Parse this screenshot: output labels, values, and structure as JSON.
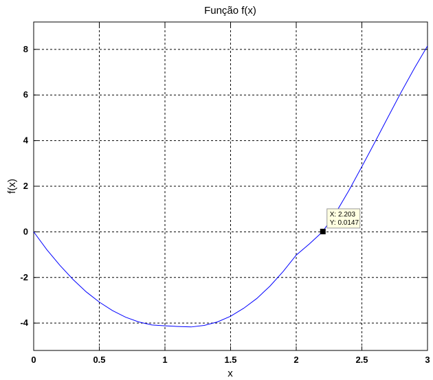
{
  "chart_data": {
    "type": "line",
    "title": "Função f(x)",
    "xlabel": "x",
    "ylabel": "f(x)",
    "xlim": [
      0,
      3
    ],
    "ylim": [
      -5.2,
      9.2
    ],
    "xticks": [
      0,
      0.5,
      1,
      1.5,
      2,
      2.5,
      3
    ],
    "xtick_labels": [
      "0",
      "0.5",
      "1",
      "1.5",
      "2",
      "2.5",
      "3"
    ],
    "yticks": [
      -4,
      -2,
      0,
      2,
      4,
      6,
      8
    ],
    "ytick_labels": [
      "-4",
      "-2",
      "0",
      "2",
      "4",
      "6",
      "8"
    ],
    "grid": true,
    "series": [
      {
        "color": "#0000ff",
        "x": [
          0,
          0.1,
          0.2,
          0.3,
          0.4,
          0.5,
          0.6,
          0.7,
          0.8,
          0.9,
          1.0,
          1.1,
          1.2,
          1.3,
          1.4,
          1.5,
          1.6,
          1.7,
          1.8,
          1.9,
          2.0,
          2.1,
          2.2,
          2.3,
          2.4,
          2.5,
          2.6,
          2.7,
          2.8,
          2.9,
          3.0
        ],
        "y": [
          0,
          -0.78,
          -1.47,
          -2.09,
          -2.63,
          -3.08,
          -3.45,
          -3.74,
          -3.95,
          -4.08,
          -4.12,
          -4.15,
          -4.17,
          -4.1,
          -3.95,
          -3.7,
          -3.35,
          -2.92,
          -2.38,
          -1.74,
          -1.02,
          -0.53,
          0.0,
          0.82,
          1.8,
          2.86,
          3.94,
          5.04,
          6.13,
          7.17,
          8.15
        ]
      }
    ],
    "datatip": {
      "x": 2.203,
      "y": 0.0147,
      "x_text": "X: 2.203",
      "y_text": "Y: 0.0147"
    }
  }
}
